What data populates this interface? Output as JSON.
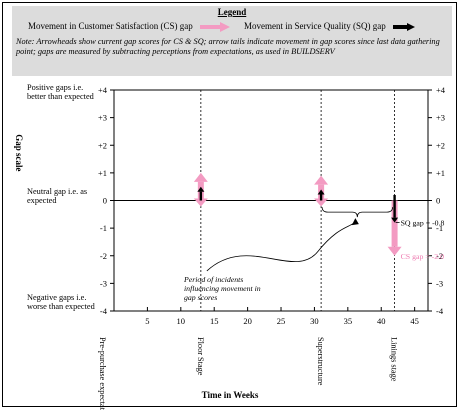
{
  "legend": {
    "title": "Legend",
    "cs_label": "Movement in Customer Satisfaction (CS) gap",
    "sq_label": "Movement in Service Quality (SQ) gap",
    "note": "Note: Arrowheads show current gap scores for CS & SQ; arrow tails indicate movement in gap scores since last data gathering point; gaps are measured by subtracting perceptions from expectations, as used in BUILDSERV"
  },
  "y_category_labels": {
    "positive": "Positive gaps i.e. better than expected",
    "neutral": "Neutral gap i.e. as expected",
    "negative": "Negative gaps i.e. worse than expected"
  },
  "annotation": "Period of incidents influencing movement in gap scores",
  "colors": {
    "cs": "#f39bc2",
    "sq": "#000000",
    "cs_text": "#ee7ab0",
    "legend_bg": "#dcdcdc"
  },
  "chart_data": {
    "type": "line",
    "xlabel": "Time in Weeks",
    "ylabel": "Gap scale",
    "xlim": [
      0,
      47
    ],
    "ylim": [
      -4,
      4
    ],
    "x_ticks": [
      5,
      10,
      15,
      20,
      25,
      30,
      35,
      40,
      45
    ],
    "y_ticks": [
      "+4",
      "+3",
      "+2",
      "+1",
      "0",
      "-1",
      "-2",
      "-3",
      "-4"
    ],
    "y_tick_values": [
      4,
      3,
      2,
      1,
      0,
      -1,
      -2,
      -3,
      -4
    ],
    "stages": [
      {
        "name": "Pre-purchase expectations",
        "x": 0
      },
      {
        "name": "Floor Stage",
        "x": 13
      },
      {
        "name": "Superstructure",
        "x": 31
      },
      {
        "name": "Linings stage",
        "x": 42
      }
    ],
    "series": [
      {
        "name": "Movement in Customer Satisfaction (CS) gap",
        "arrows": [
          {
            "x": 13,
            "from": 0,
            "to": 1.0
          },
          {
            "x": 31,
            "from": 0,
            "to": 0.9
          },
          {
            "x": 42,
            "from": 0,
            "to": -2.0
          }
        ]
      },
      {
        "name": "Movement in Service Quality (SQ) gap",
        "arrows": [
          {
            "x": 13,
            "from": 0,
            "to": 0.5
          },
          {
            "x": 31,
            "from": 0,
            "to": 0.4
          },
          {
            "x": 42,
            "from": 0.2,
            "to": -0.8
          }
        ]
      }
    ],
    "data_labels": [
      {
        "text": "SQ gap = -0.8",
        "x": 42,
        "y": -0.8,
        "series": "sq"
      },
      {
        "text": "CS gap = -2.0",
        "x": 42,
        "y": -2.0,
        "series": "cs"
      }
    ]
  }
}
